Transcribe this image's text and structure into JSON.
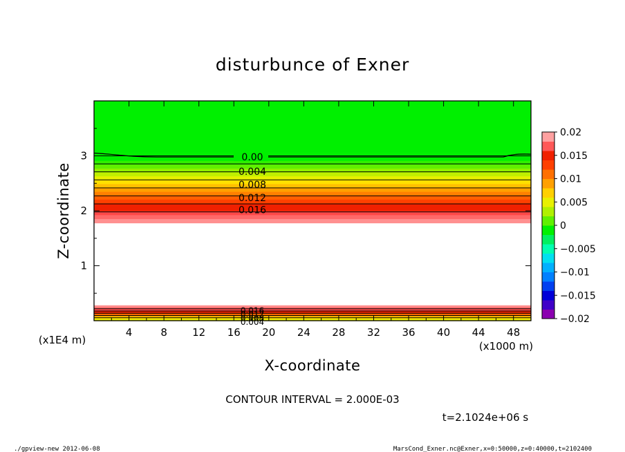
{
  "chart_data": {
    "type": "heatmap",
    "title": "disturbunce of Exner",
    "xlabel": "X-coordinate",
    "ylabel": "Z-coordinate",
    "x_unit": "(x1000 m)",
    "y_unit": "(x1E4 m)",
    "xlim": [
      0,
      50
    ],
    "ylim": [
      0,
      4
    ],
    "x_ticks": [
      "4",
      "8",
      "12",
      "16",
      "20",
      "24",
      "28",
      "32",
      "36",
      "40",
      "44",
      "48"
    ],
    "y_ticks": [
      "1",
      "2",
      "3"
    ],
    "contour_interval_text": "CONTOUR INTERVAL = 2.000E-03",
    "time_text": "t=2.1024e+06 s",
    "contour_labels_upper": [
      {
        "text": "0.00",
        "z": 2.98
      },
      {
        "text": "0.004",
        "z": 2.72
      },
      {
        "text": "0.008",
        "z": 2.48
      },
      {
        "text": "0.012",
        "z": 2.24
      },
      {
        "text": "0.016",
        "z": 2.02
      }
    ],
    "contour_labels_lower": [
      "0.016",
      "0.012",
      "0.008",
      "0.004"
    ],
    "colorbar": {
      "min": -0.02,
      "max": 0.02,
      "tick_labels": [
        "0.02",
        "0.015",
        "0.01",
        "0.005",
        "0",
        "−0.005",
        "−0.01",
        "−0.015",
        "−0.02"
      ],
      "colors": [
        "#8b00b0",
        "#4000c8",
        "#0000d8",
        "#0040f0",
        "#0080ff",
        "#00b0ff",
        "#00e0f0",
        "#00ffb0",
        "#00f060",
        "#00f000",
        "#60f000",
        "#b0f000",
        "#e8f000",
        "#ffd000",
        "#ffa000",
        "#ff7000",
        "#ff4000",
        "#f02000",
        "#ff5858",
        "#ffa0a0"
      ]
    },
    "upper_band": {
      "z_top": 3.05,
      "z_bottom": 1.78,
      "colors": [
        "#00f000",
        "#00f000",
        "#30f000",
        "#60f000",
        "#90f000",
        "#c0f000",
        "#e8f000",
        "#ffe000",
        "#ffc000",
        "#ffa000",
        "#ff8000",
        "#ff6000",
        "#ff4000",
        "#f02000",
        "#f02000",
        "#ff4848",
        "#ff6868",
        "#ff9090"
      ]
    },
    "lower_band": {
      "z_top": 0.28,
      "z_bottom": 0.0,
      "colors": [
        "#ff9090",
        "#ff6868",
        "#ff4848",
        "#f02000",
        "#ff6000",
        "#ffa000",
        "#ffe000",
        "#e8f000"
      ]
    }
  },
  "footer": {
    "left": "./gpview-new   2012-06-08",
    "right": "MarsCond_Exner.nc@Exner,x=0:50000,z=0:40000,t=2102400"
  }
}
